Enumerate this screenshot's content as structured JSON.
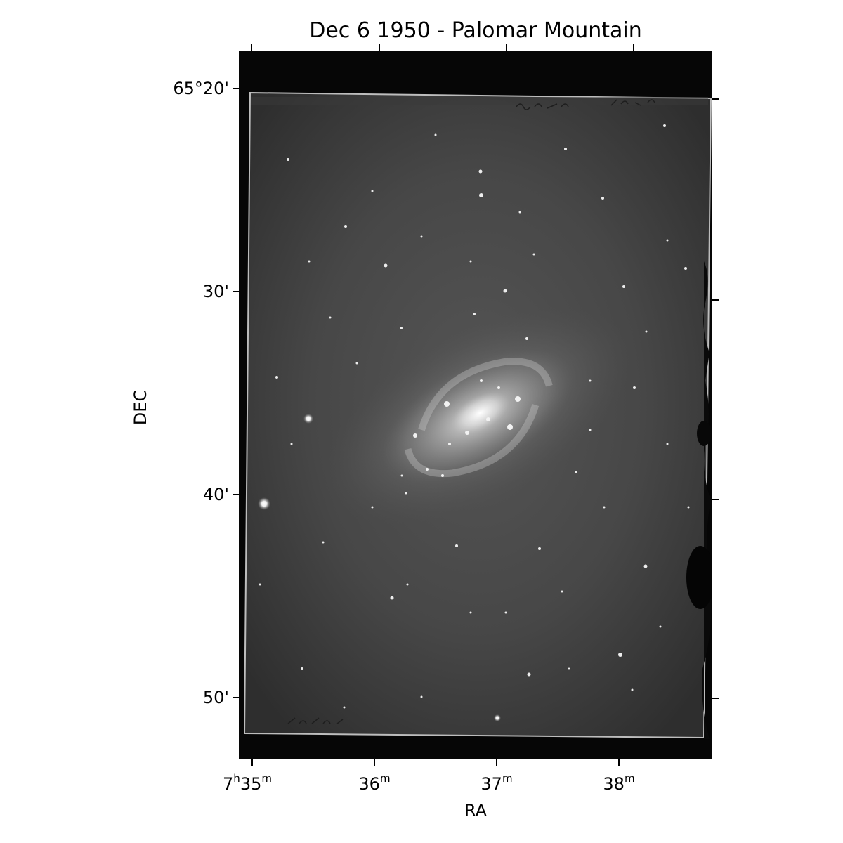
{
  "figure": {
    "title": "Dec 6 1950 - Palomar Mountain",
    "xlabel": "RA",
    "ylabel": "DEC",
    "dec_ticks": [
      "65°20'",
      "30'",
      "40'",
      "50'"
    ],
    "ra_ticks": [
      {
        "main": "7",
        "h": "h",
        "rest": "35",
        "m": "m"
      },
      {
        "main": "36",
        "m": "m"
      },
      {
        "main": "37",
        "m": "m"
      },
      {
        "main": "38",
        "m": "m"
      }
    ]
  },
  "image": {
    "subject": "spiral-galaxy",
    "colormap": "grayscale",
    "plate_annotation_top": "N 2403",
    "plate_annotation_bottom": "7-5-48 KL"
  }
}
